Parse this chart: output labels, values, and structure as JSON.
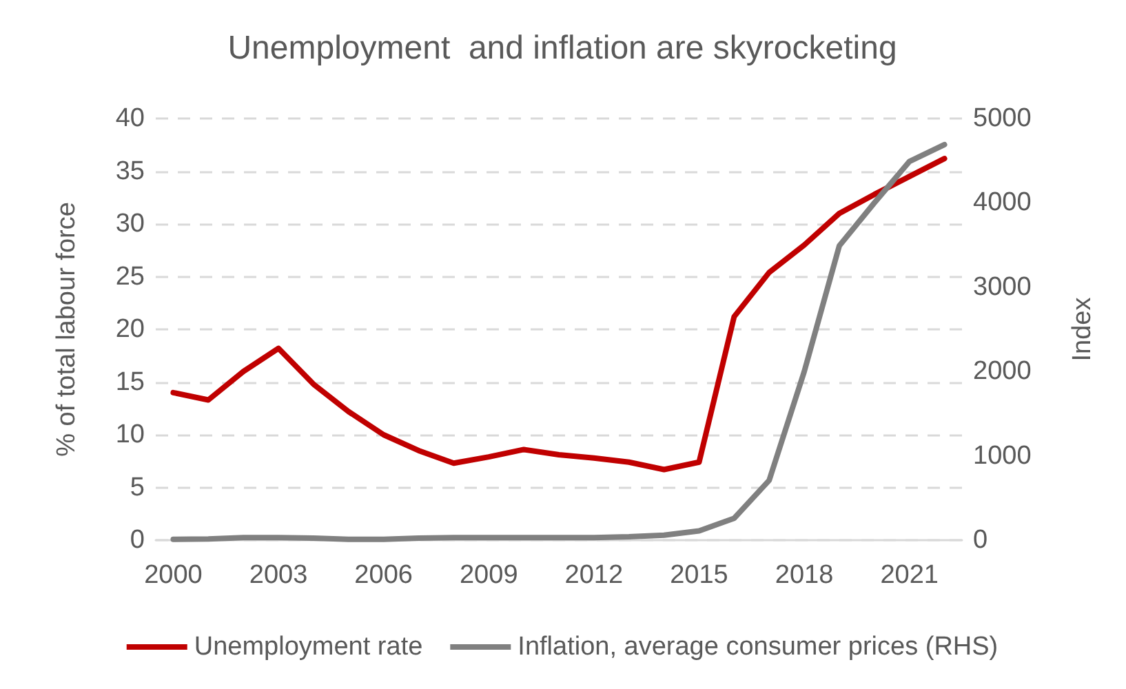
{
  "chart_data": {
    "type": "line",
    "title": "Unemployment  and inflation are skyrocketing",
    "ylabel": "% of total labour force",
    "y2label": "Index",
    "categories": [
      "2000",
      null,
      null,
      "2003",
      null,
      null,
      "2006",
      null,
      null,
      "2009",
      null,
      null,
      "2012",
      null,
      null,
      "2015",
      null,
      null,
      "2018",
      null,
      null,
      "2021",
      null
    ],
    "series": [
      {
        "name": "Unemployment rate",
        "color": "#c00000",
        "values": [
          14,
          13.3,
          16,
          18.2,
          14.8,
          12.2,
          10,
          8.5,
          7.3,
          7.9,
          8.6,
          8.1,
          7.8,
          7.4,
          6.7,
          7.4,
          21.2,
          25.4,
          28,
          31,
          32.8,
          34.5,
          36.2
        ]
      },
      {
        "name": "Inflation, average consumer prices (RHS)",
        "color": "#808080",
        "axis": "y2",
        "values": [
          10,
          15,
          30,
          30,
          25,
          10,
          10,
          25,
          30,
          30,
          30,
          30,
          30,
          40,
          60,
          110,
          260,
          710,
          2000,
          3490,
          4000,
          4490,
          4690
        ]
      }
    ],
    "ylim": [
      0,
      40
    ],
    "yticks": [
      0,
      5,
      10,
      15,
      20,
      25,
      30,
      35,
      40
    ],
    "y2lim": [
      0,
      5000
    ],
    "y2ticks": [
      0,
      1000,
      2000,
      3000,
      4000,
      5000
    ],
    "grid": "y",
    "legend": "bottom",
    "marker": "none",
    "line_style": "solid"
  }
}
